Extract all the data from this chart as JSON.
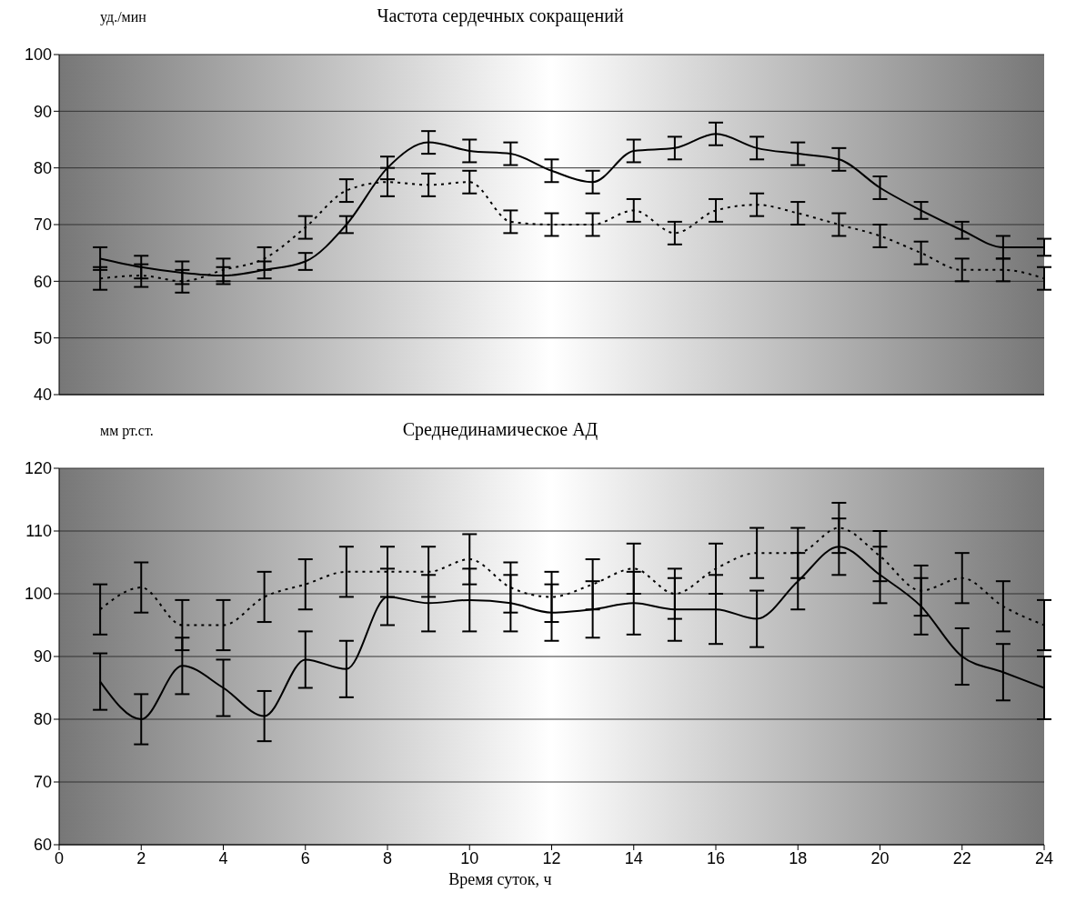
{
  "chart_data": [
    {
      "type": "line",
      "title": "Частота сердечных сокращений",
      "ylabel": "уд./мин",
      "x": [
        1,
        2,
        3,
        4,
        5,
        6,
        7,
        8,
        9,
        10,
        11,
        12,
        13,
        14,
        15,
        16,
        17,
        18,
        19,
        20,
        21,
        22,
        23,
        24
      ],
      "series": [
        {
          "color": "#000000",
          "line_style": "solid",
          "values": [
            64,
            62.5,
            61.5,
            61,
            62,
            63.5,
            70,
            80,
            84.5,
            83,
            82.5,
            79.5,
            77.5,
            83,
            83.5,
            86,
            83.5,
            82.5,
            81.5,
            76.5,
            72.5,
            69,
            66,
            66
          ],
          "errors": [
            2,
            2,
            2,
            1.5,
            1.5,
            1.5,
            1.5,
            2,
            2,
            2,
            2,
            2,
            2,
            2,
            2,
            2,
            2,
            2,
            2,
            2,
            1.5,
            1.5,
            2,
            1.5
          ]
        },
        {
          "color": "#000000",
          "line_style": "dotted",
          "values": [
            60.5,
            61,
            60,
            62,
            64,
            69.5,
            76,
            77.5,
            77,
            77.5,
            70.5,
            70,
            70,
            72.5,
            68.5,
            72.5,
            73.5,
            72,
            70,
            68,
            65,
            62,
            62,
            60.5
          ],
          "errors": [
            2,
            2,
            2,
            2,
            2,
            2,
            2,
            2.5,
            2,
            2,
            2,
            2,
            2,
            2,
            2,
            2,
            2,
            2,
            2,
            2,
            2,
            2,
            2,
            2
          ]
        }
      ],
      "xlim": [
        0,
        24
      ],
      "ylim": [
        40,
        100
      ],
      "yticks": [
        40,
        50,
        60,
        70,
        80,
        90,
        100
      ],
      "grid": "y",
      "tick_labels": "y",
      "marker": "none",
      "legend": false
    },
    {
      "type": "line",
      "title": "Среднединамическое АД",
      "ylabel": "мм рт.ст.",
      "xlabel": "Время суток, ч",
      "x": [
        1,
        2,
        3,
        4,
        5,
        6,
        7,
        8,
        9,
        10,
        11,
        12,
        13,
        14,
        15,
        16,
        17,
        18,
        19,
        20,
        21,
        22,
        23,
        24
      ],
      "series": [
        {
          "color": "#000000",
          "line_style": "solid",
          "values": [
            86,
            80,
            88.5,
            85,
            80.5,
            89.5,
            88,
            99.5,
            98.5,
            99,
            98.5,
            97,
            97.5,
            98.5,
            97.5,
            97.5,
            96,
            102,
            107.5,
            103,
            98,
            90,
            87.5,
            85
          ],
          "errors": [
            4.5,
            4,
            4.5,
            4.5,
            4,
            4.5,
            4.5,
            4.5,
            4.5,
            5,
            4.5,
            4.5,
            4.5,
            5,
            5,
            5.5,
            4.5,
            4.5,
            4.5,
            4.5,
            4.5,
            4.5,
            4.5,
            5
          ]
        },
        {
          "color": "#000000",
          "line_style": "dotted",
          "values": [
            97.5,
            101,
            95,
            95,
            99.5,
            101.5,
            103.5,
            103.5,
            103.5,
            105.5,
            101,
            99.5,
            101.5,
            104,
            100,
            104,
            106.5,
            106.5,
            110.5,
            106,
            100.5,
            102.5,
            98,
            95
          ],
          "errors": [
            4,
            4,
            4,
            4,
            4,
            4,
            4,
            4,
            4,
            4,
            4,
            4,
            4,
            4,
            4,
            4,
            4,
            4,
            4,
            4,
            4,
            4,
            4,
            4
          ]
        }
      ],
      "xlim": [
        0,
        24
      ],
      "xticks": [
        0,
        2,
        4,
        6,
        8,
        10,
        12,
        14,
        16,
        18,
        20,
        22,
        24
      ],
      "ylim": [
        60,
        120
      ],
      "yticks": [
        60,
        70,
        80,
        90,
        100,
        110,
        120
      ],
      "grid": "y",
      "marker": "none",
      "legend": false
    }
  ]
}
